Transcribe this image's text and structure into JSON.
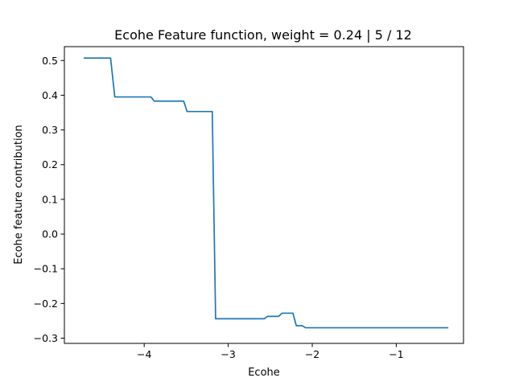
{
  "chart_data": {
    "type": "line",
    "title": "Ecohe Feature function, weight = 0.24 | 5 / 12",
    "xlabel": "Ecohe",
    "ylabel": "Ecohe feature contribution",
    "xlim": [
      -4.95,
      -0.2
    ],
    "ylim": [
      -0.315,
      0.54
    ],
    "xticks": [
      {
        "value": -4,
        "label": "−4"
      },
      {
        "value": -3,
        "label": "−3"
      },
      {
        "value": -2,
        "label": "−2"
      },
      {
        "value": -1,
        "label": "−1"
      }
    ],
    "yticks": [
      {
        "value": 0.5,
        "label": "0.5"
      },
      {
        "value": 0.4,
        "label": "0.4"
      },
      {
        "value": 0.3,
        "label": "0.3"
      },
      {
        "value": 0.2,
        "label": "0.2"
      },
      {
        "value": 0.1,
        "label": "0.1"
      },
      {
        "value": 0.0,
        "label": "0.0"
      },
      {
        "value": -0.1,
        "label": "−0.1"
      },
      {
        "value": -0.2,
        "label": "−0.2"
      },
      {
        "value": -0.3,
        "label": "−0.3"
      }
    ],
    "grid": false,
    "series": [
      {
        "color": "#1f77b4",
        "x": [
          -4.72,
          -4.4,
          -4.35,
          -3.92,
          -3.88,
          -3.53,
          -3.49,
          -3.19,
          -3.15,
          -2.57,
          -2.53,
          -2.4,
          -2.36,
          -2.23,
          -2.19,
          -2.12,
          -2.08,
          -0.38
        ],
        "y": [
          0.507,
          0.507,
          0.395,
          0.395,
          0.383,
          0.383,
          0.353,
          0.353,
          -0.244,
          -0.244,
          -0.237,
          -0.237,
          -0.228,
          -0.228,
          -0.264,
          -0.264,
          -0.27,
          -0.27
        ]
      }
    ]
  }
}
